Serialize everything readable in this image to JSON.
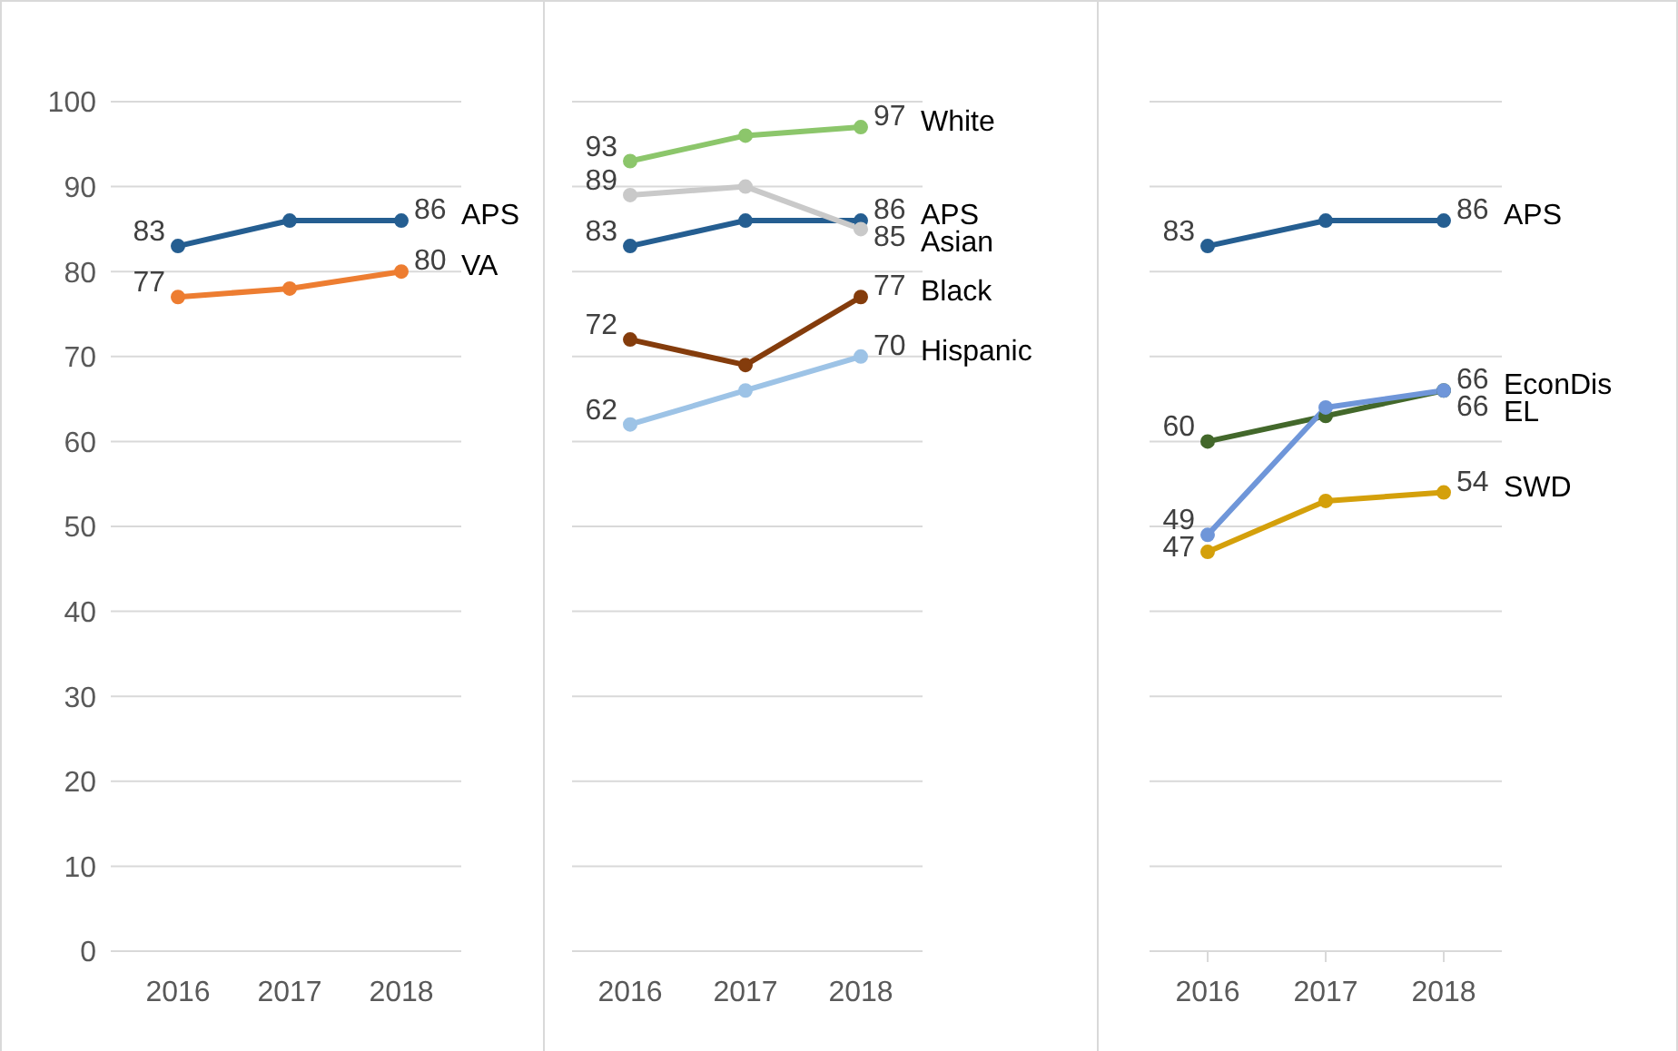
{
  "chart_data": [
    {
      "type": "line",
      "categories": [
        "2016",
        "2017",
        "2018"
      ],
      "ylim": [
        0,
        100
      ],
      "yticks": [
        0,
        10,
        20,
        30,
        40,
        50,
        60,
        70,
        80,
        90,
        100
      ],
      "grid": "y",
      "marker": "circle",
      "series": [
        {
          "name": "APS",
          "color": "#255e91",
          "values": [
            83,
            86,
            86
          ],
          "value_labels": [
            "83",
            null,
            "86"
          ]
        },
        {
          "name": "VA",
          "color": "#ed7d31",
          "values": [
            77,
            78,
            80
          ],
          "value_labels": [
            "77",
            null,
            "80"
          ]
        }
      ]
    },
    {
      "type": "line",
      "categories": [
        "2016",
        "2017",
        "2018"
      ],
      "ylim": [
        0,
        100
      ],
      "yticks": [
        0,
        10,
        20,
        30,
        40,
        50,
        60,
        70,
        80,
        90,
        100
      ],
      "grid": "y",
      "marker": "circle",
      "tick_labels": "x",
      "series": [
        {
          "name": "White",
          "color": "#8cc66b",
          "values": [
            93,
            96,
            97
          ],
          "value_labels": [
            "93",
            null,
            "97"
          ]
        },
        {
          "name": "APS",
          "color": "#255e91",
          "values": [
            83,
            86,
            86
          ],
          "value_labels": [
            "83",
            null,
            "86"
          ]
        },
        {
          "name": "Asian",
          "color": "#c9c9c9",
          "values": [
            89,
            90,
            85
          ],
          "value_labels": [
            "89",
            null,
            "85"
          ]
        },
        {
          "name": "Black",
          "color": "#843c0c",
          "values": [
            72,
            69,
            77
          ],
          "value_labels": [
            "72",
            null,
            "77"
          ]
        },
        {
          "name": "Hispanic",
          "color": "#9dc3e6",
          "values": [
            62,
            66,
            70
          ],
          "value_labels": [
            "62",
            null,
            "70"
          ]
        }
      ]
    },
    {
      "type": "line",
      "categories": [
        "2016",
        "2017",
        "2018"
      ],
      "ylim": [
        0,
        100
      ],
      "yticks": [
        0,
        10,
        20,
        30,
        40,
        50,
        60,
        70,
        80,
        90,
        100
      ],
      "grid": "y",
      "marker": "circle",
      "tick_labels": "x",
      "series": [
        {
          "name": "APS",
          "color": "#255e91",
          "values": [
            83,
            86,
            86
          ],
          "value_labels": [
            "83",
            null,
            "86"
          ]
        },
        {
          "name": "EconDis",
          "color": "#43682b",
          "values": [
            60,
            63,
            66
          ],
          "value_labels": [
            "60",
            null,
            "66"
          ]
        },
        {
          "name": "EL",
          "color": "#6f96d9",
          "values": [
            49,
            64,
            66
          ],
          "value_labels": [
            "49",
            null,
            "66"
          ]
        },
        {
          "name": "SWD",
          "color": "#d4a00b",
          "values": [
            47,
            53,
            54
          ],
          "value_labels": [
            "47",
            null,
            "54"
          ]
        }
      ]
    }
  ]
}
